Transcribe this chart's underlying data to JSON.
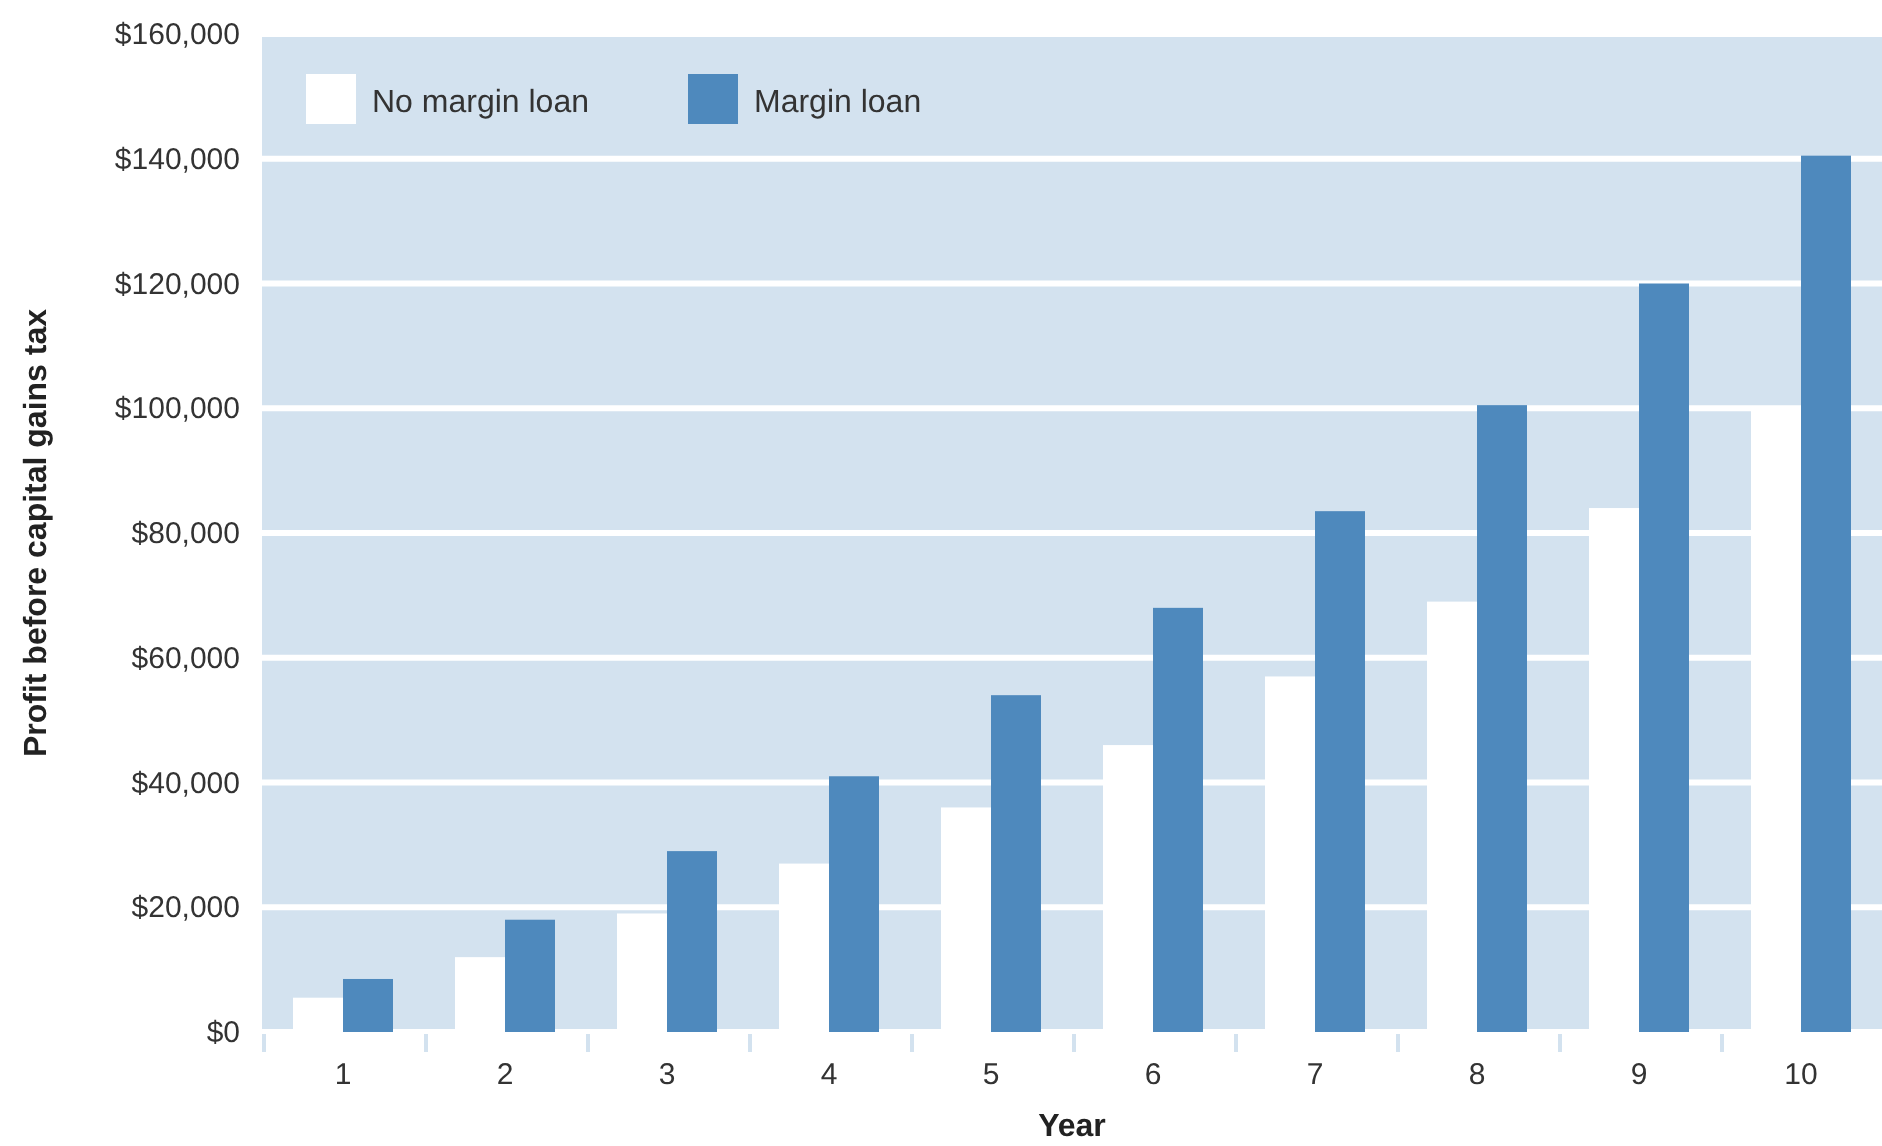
{
  "chart_data": {
    "type": "bar",
    "xlabel": "Year",
    "ylabel": "Profit before capital gains tax",
    "categories": [
      "1",
      "2",
      "3",
      "4",
      "5",
      "6",
      "7",
      "8",
      "9",
      "10"
    ],
    "series": [
      {
        "name": "No margin loan",
        "color": "#ffffff",
        "values": [
          5500,
          12000,
          19000,
          27000,
          36000,
          46000,
          57000,
          69000,
          84000,
          100000
        ]
      },
      {
        "name": "Margin loan",
        "color": "#4e89bd",
        "values": [
          8500,
          18000,
          29000,
          41000,
          54000,
          68000,
          83500,
          100500,
          120000,
          140500
        ]
      }
    ],
    "ylim": [
      0,
      160000
    ],
    "yticks": [
      {
        "value": 0,
        "label": "$0"
      },
      {
        "value": 20000,
        "label": "$20,000"
      },
      {
        "value": 40000,
        "label": "$40,000"
      },
      {
        "value": 60000,
        "label": "$60,000"
      },
      {
        "value": 80000,
        "label": "$80,000"
      },
      {
        "value": 100000,
        "label": "$100,000"
      },
      {
        "value": 120000,
        "label": "$120,000"
      },
      {
        "value": 140000,
        "label": "$140,000"
      },
      {
        "value": 160000,
        "label": "$160,000"
      }
    ],
    "grid": "y",
    "legend": "top left"
  }
}
